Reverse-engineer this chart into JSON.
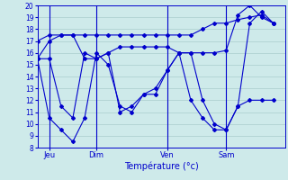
{
  "xlabel": "Température (°c)",
  "background_color": "#ceeaea",
  "grid_color": "#aacccc",
  "line_color": "#0000cc",
  "day_labels": [
    "Jeu",
    "Dim",
    "Ven",
    "Sam"
  ],
  "day_positions": [
    1,
    5,
    11,
    16
  ],
  "xlim": [
    0,
    21
  ],
  "ylim": [
    8,
    20
  ],
  "yticks": [
    8,
    9,
    10,
    11,
    12,
    13,
    14,
    15,
    16,
    17,
    18,
    19,
    20
  ],
  "series": [
    [
      17.0,
      17.5,
      17.5,
      17.5,
      17.5,
      17.5,
      17.5,
      17.5,
      17.5,
      17.5,
      17.5,
      17.5,
      17.5,
      17.5,
      18.0,
      18.5,
      18.5,
      18.8,
      19.0,
      19.2,
      18.5
    ],
    [
      15.5,
      17.0,
      17.5,
      17.5,
      15.5,
      15.5,
      16.0,
      16.5,
      16.5,
      16.5,
      16.5,
      16.5,
      16.0,
      16.0,
      16.0,
      16.0,
      16.2,
      19.2,
      20.0,
      19.0,
      18.5
    ],
    [
      15.5,
      15.5,
      11.5,
      10.5,
      16.0,
      15.5,
      16.0,
      11.0,
      11.5,
      12.5,
      13.0,
      14.5,
      16.0,
      16.0,
      12.0,
      10.0,
      9.5,
      11.5,
      18.5,
      19.5,
      18.5
    ],
    [
      15.5,
      10.5,
      9.5,
      8.5,
      10.5,
      16.0,
      15.0,
      11.5,
      11.0,
      12.5,
      12.5,
      14.5,
      16.0,
      12.0,
      10.5,
      9.5,
      9.5,
      11.5,
      12.0,
      12.0,
      12.0
    ]
  ],
  "num_points": 21
}
